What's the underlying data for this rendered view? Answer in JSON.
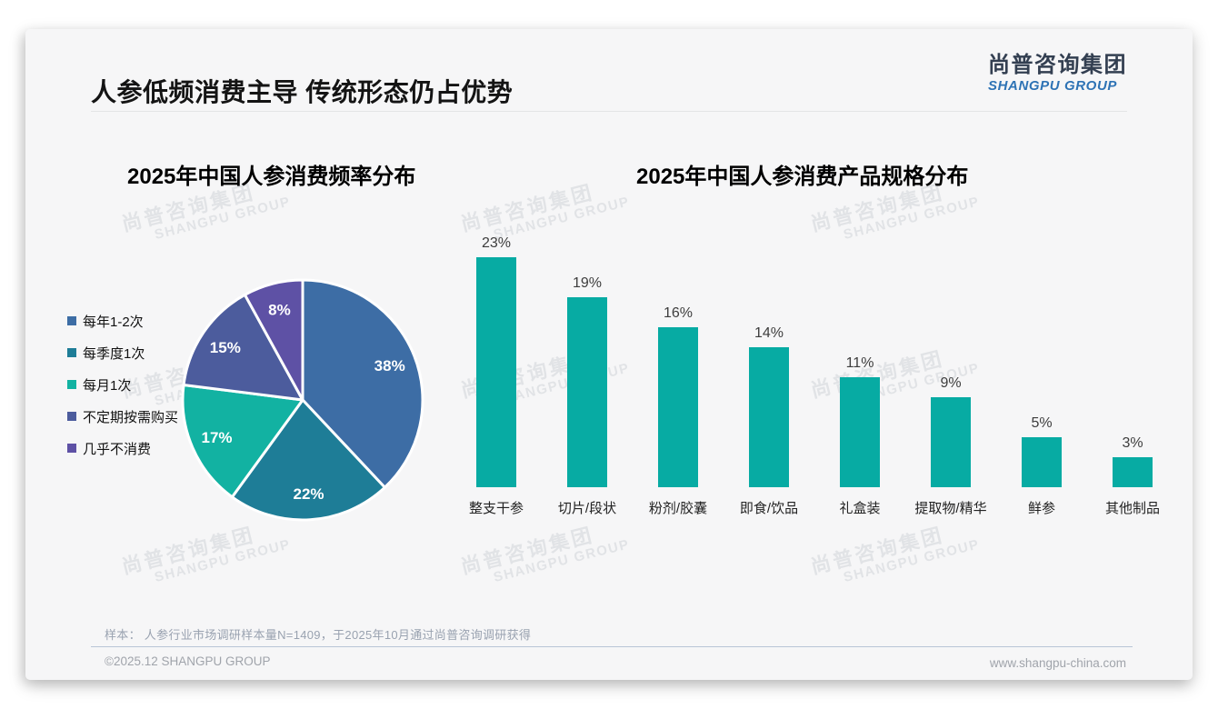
{
  "header": {
    "title": "人参低频消费主导 传统形态仍占优势"
  },
  "logo": {
    "cn": "尚普咨询集团",
    "en": "SHANGPU GROUP"
  },
  "watermark": {
    "cn": "尚普咨询集团",
    "en": "SHANGPU GROUP"
  },
  "brand_colors": {
    "logo_navy": "#333f51",
    "logo_blue": "#2e73b5",
    "teal": "#07aba3"
  },
  "chart_data": [
    {
      "type": "pie",
      "title": "2025年中国人参消费频率分布",
      "labels": [
        "每年1-2次",
        "每季度1次",
        "每月1次",
        "不定期按需购买",
        "几乎不消费"
      ],
      "values": [
        38,
        22,
        17,
        15,
        8
      ],
      "unit": "%",
      "colors": [
        "#3d6da5",
        "#1e7d97",
        "#12b2a2",
        "#4c5c9d",
        "#5e51a5"
      ],
      "start_angle_deg": 0,
      "direction": "clockwise",
      "legend_position": "left",
      "slice_label_color": "#ffffff"
    },
    {
      "type": "bar",
      "title": "2025年中国人参消费产品规格分布",
      "categories": [
        "整支干参",
        "切片/段状",
        "粉剂/胶囊",
        "即食/饮品",
        "礼盒装",
        "提取物/精华",
        "鲜参",
        "其他制品"
      ],
      "values": [
        23,
        19,
        16,
        14,
        11,
        9,
        5,
        3
      ],
      "unit": "%",
      "bar_color": "#07aba3",
      "ylim": [
        0,
        25
      ],
      "grid": false,
      "value_labels": true,
      "axis_visible": false
    }
  ],
  "footer": {
    "note": "样本： 人参行业市场调研样本量N=1409，于2025年10月通过尚普咨询调研获得",
    "copyright": "©2025.12 SHANGPU GROUP",
    "website": "www.shangpu-china.com"
  }
}
